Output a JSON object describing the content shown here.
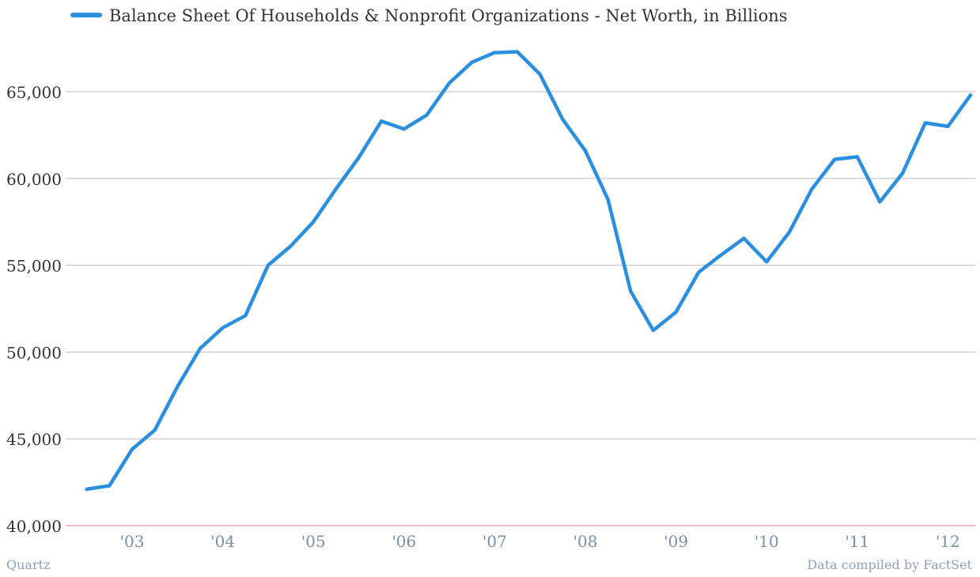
{
  "chart_data": {
    "type": "line",
    "title": "",
    "xlabel": "",
    "ylabel": "",
    "legend": "top-left",
    "grid": true,
    "ylim": [
      40000,
      67500
    ],
    "y_ticks": [
      40000,
      45000,
      50000,
      55000,
      60000,
      65000
    ],
    "y_tick_labels": [
      "40,000",
      "45,000",
      "50,000",
      "55,000",
      "60,000",
      "65,000"
    ],
    "x_ticks": [
      2003,
      2004,
      2005,
      2006,
      2007,
      2008,
      2009,
      2010,
      2011,
      2012
    ],
    "x_tick_labels": [
      "'03",
      "'04",
      "'05",
      "'06",
      "'07",
      "'08",
      "'09",
      "'10",
      "'11",
      "'12"
    ],
    "series": [
      {
        "name": "Balance Sheet Of Households & Nonprofit Organizations - Net Worth, in Billions",
        "color": "#2b8fe0",
        "x": [
          2002.5,
          2002.75,
          2003.0,
          2003.25,
          2003.5,
          2003.75,
          2004.0,
          2004.25,
          2004.5,
          2004.75,
          2005.0,
          2005.25,
          2005.5,
          2005.75,
          2006.0,
          2006.25,
          2006.5,
          2006.75,
          2007.0,
          2007.25,
          2007.5,
          2007.75,
          2008.0,
          2008.25,
          2008.5,
          2008.75,
          2009.0,
          2009.25,
          2009.5,
          2009.75,
          2010.0,
          2010.25,
          2010.5,
          2010.75,
          2011.0,
          2011.25,
          2011.5,
          2011.75,
          2012.0,
          2012.25
        ],
        "values": [
          42100,
          42300,
          44400,
          45500,
          48000,
          50200,
          51400,
          52100,
          55000,
          56100,
          57500,
          59400,
          61200,
          63300,
          62850,
          63650,
          65500,
          66700,
          67250,
          67300,
          66000,
          63400,
          61600,
          58800,
          53500,
          51250,
          52300,
          54600,
          55600,
          56550,
          55200,
          56900,
          59400,
          61100,
          61250,
          58650,
          60300,
          63200,
          63000,
          64800
        ]
      }
    ]
  },
  "footer": {
    "source_left": "Quartz",
    "source_right": "Data compiled by FactSet"
  }
}
